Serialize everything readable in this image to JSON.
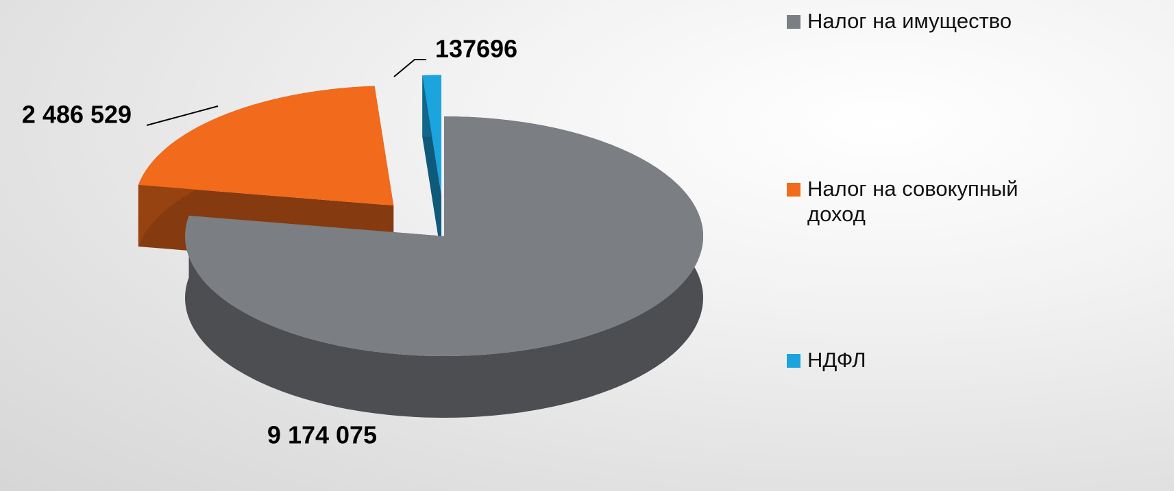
{
  "chart_data": {
    "type": "pie",
    "categories": [
      "Налог на имущество",
      "Налог на совокупный доход",
      "НДФЛ"
    ],
    "values": [
      9174075,
      2486529,
      137696
    ],
    "value_labels": [
      "9 174 075",
      "2 486 529",
      "137696"
    ],
    "colors": [
      "#7b7e82",
      "#f26a1b",
      "#1ba4de"
    ]
  }
}
